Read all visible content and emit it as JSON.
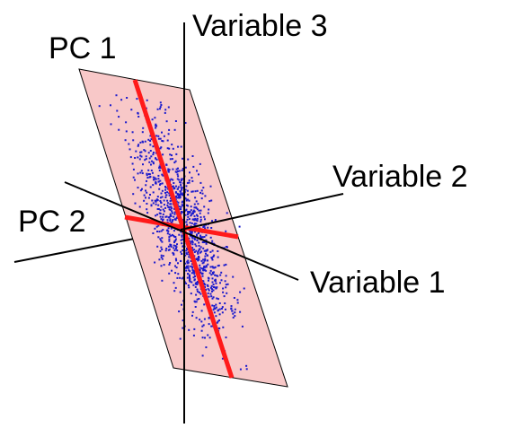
{
  "labels": {
    "variable_3": "Variable 3",
    "variable_2": "Variable 2",
    "variable_1": "Variable 1",
    "pc_1": "PC 1",
    "pc_2": "PC 2"
  },
  "colors": {
    "plane_fill": "#f8c8c8",
    "plane_stroke": "#000000",
    "axis": "#000000",
    "pc_line": "#ff1a1a",
    "points": "#1a1acc"
  },
  "point_count": 1100
}
